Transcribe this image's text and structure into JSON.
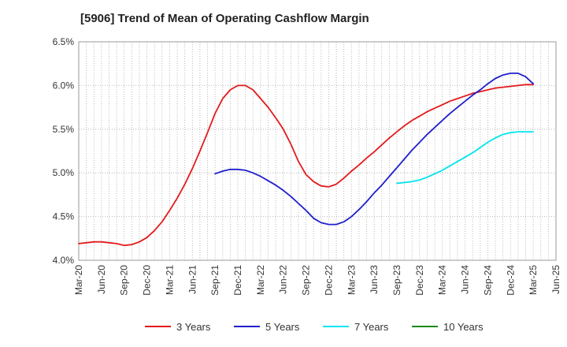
{
  "chart_data": {
    "type": "line",
    "title": "[5906]  Trend of Mean of Operating Cashflow Margin",
    "xlabel": "",
    "ylabel": "",
    "x_ticks": [
      "Mar-20",
      "Jun-20",
      "Sep-20",
      "Dec-20",
      "Mar-21",
      "Jun-21",
      "Sep-21",
      "Dec-21",
      "Mar-22",
      "Jun-22",
      "Sep-22",
      "Dec-22",
      "Mar-23",
      "Jun-23",
      "Sep-23",
      "Dec-23",
      "Mar-24",
      "Jun-24",
      "Sep-24",
      "Dec-24",
      "Mar-25",
      "Jun-25"
    ],
    "y_ticks": [
      "4.0%",
      "4.5%",
      "5.0%",
      "5.5%",
      "6.0%",
      "6.5%"
    ],
    "ylim": [
      4.0,
      6.5
    ],
    "grid": true,
    "legend_position": "bottom",
    "series": [
      {
        "name": "3 Years",
        "color": "#e31a1c",
        "x": [
          "2020-03",
          "2020-04",
          "2020-05",
          "2020-06",
          "2020-07",
          "2020-08",
          "2020-09",
          "2020-10",
          "2020-11",
          "2020-12",
          "2021-01",
          "2021-02",
          "2021-03",
          "2021-04",
          "2021-05",
          "2021-06",
          "2021-07",
          "2021-08",
          "2021-09",
          "2021-10",
          "2021-11",
          "2021-12",
          "2022-01",
          "2022-02",
          "2022-03",
          "2022-04",
          "2022-05",
          "2022-06",
          "2022-07",
          "2022-08",
          "2022-09",
          "2022-10",
          "2022-11",
          "2022-12",
          "2023-01",
          "2023-02",
          "2023-03",
          "2023-04",
          "2023-05",
          "2023-06",
          "2023-07",
          "2023-08",
          "2023-09",
          "2023-10",
          "2023-11",
          "2023-12",
          "2024-01",
          "2024-02",
          "2024-03",
          "2024-04",
          "2024-05",
          "2024-06",
          "2024-07",
          "2024-08",
          "2024-09",
          "2024-10",
          "2024-11",
          "2024-12",
          "2025-01",
          "2025-02",
          "2025-03"
        ],
        "values": [
          4.19,
          4.2,
          4.21,
          4.21,
          4.2,
          4.19,
          4.17,
          4.18,
          4.21,
          4.26,
          4.34,
          4.44,
          4.57,
          4.71,
          4.87,
          5.05,
          5.25,
          5.46,
          5.68,
          5.85,
          5.95,
          6.0,
          6.0,
          5.95,
          5.85,
          5.75,
          5.63,
          5.5,
          5.33,
          5.13,
          4.98,
          4.9,
          4.85,
          4.84,
          4.87,
          4.94,
          5.02,
          5.09,
          5.17,
          5.24,
          5.32,
          5.4,
          5.47,
          5.54,
          5.6,
          5.65,
          5.7,
          5.74,
          5.78,
          5.82,
          5.85,
          5.88,
          5.91,
          5.93,
          5.95,
          5.97,
          5.98,
          5.99,
          6.0,
          6.01,
          6.01
        ]
      },
      {
        "name": "5 Years",
        "color": "#1f1fcc",
        "x": [
          "2021-09",
          "2021-10",
          "2021-11",
          "2021-12",
          "2022-01",
          "2022-02",
          "2022-03",
          "2022-04",
          "2022-05",
          "2022-06",
          "2022-07",
          "2022-08",
          "2022-09",
          "2022-10",
          "2022-11",
          "2022-12",
          "2023-01",
          "2023-02",
          "2023-03",
          "2023-04",
          "2023-05",
          "2023-06",
          "2023-07",
          "2023-08",
          "2023-09",
          "2023-10",
          "2023-11",
          "2023-12",
          "2024-01",
          "2024-02",
          "2024-03",
          "2024-04",
          "2024-05",
          "2024-06",
          "2024-07",
          "2024-08",
          "2024-09",
          "2024-10",
          "2024-11",
          "2024-12",
          "2025-01",
          "2025-02",
          "2025-03"
        ],
        "values": [
          4.99,
          5.02,
          5.04,
          5.04,
          5.03,
          5.0,
          4.96,
          4.91,
          4.86,
          4.8,
          4.73,
          4.65,
          4.57,
          4.48,
          4.43,
          4.41,
          4.41,
          4.44,
          4.5,
          4.58,
          4.67,
          4.77,
          4.86,
          4.96,
          5.06,
          5.16,
          5.26,
          5.35,
          5.44,
          5.52,
          5.6,
          5.68,
          5.75,
          5.82,
          5.89,
          5.95,
          6.02,
          6.08,
          6.12,
          6.14,
          6.14,
          6.1,
          6.02
        ]
      },
      {
        "name": "7 Years",
        "color": "#00e5ee",
        "x": [
          "2023-09",
          "2023-10",
          "2023-11",
          "2023-12",
          "2024-01",
          "2024-02",
          "2024-03",
          "2024-04",
          "2024-05",
          "2024-06",
          "2024-07",
          "2024-08",
          "2024-09",
          "2024-10",
          "2024-11",
          "2024-12",
          "2025-01",
          "2025-02",
          "2025-03"
        ],
        "values": [
          4.88,
          4.89,
          4.9,
          4.92,
          4.95,
          4.99,
          5.03,
          5.08,
          5.13,
          5.18,
          5.23,
          5.29,
          5.35,
          5.4,
          5.44,
          5.46,
          5.47,
          5.47,
          5.47
        ]
      },
      {
        "name": "10 Years",
        "color": "#1a8c1a",
        "x": [],
        "values": []
      }
    ]
  }
}
